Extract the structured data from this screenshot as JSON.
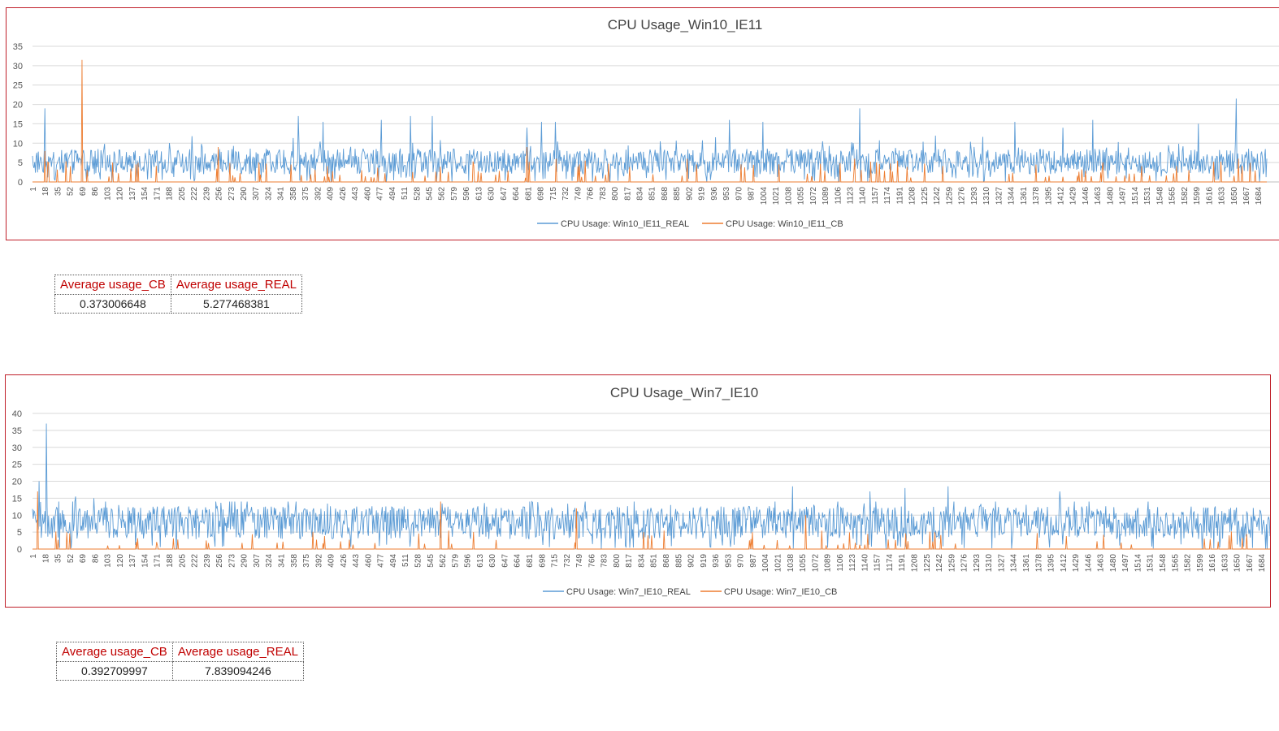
{
  "colors": {
    "real": "#5b9bd5",
    "cb": "#ed7d31",
    "border": "#c0202a",
    "header_text": "#c00000"
  },
  "chart_data": [
    {
      "type": "line",
      "title": "CPU Usage_Win10_IE11",
      "xlabel": "",
      "ylabel": "",
      "ylim": [
        0,
        35
      ],
      "yticks": [
        0,
        5,
        10,
        15,
        20,
        25,
        30,
        35
      ],
      "x_range": [
        1,
        1696
      ],
      "xticks": [
        1,
        18,
        35,
        52,
        69,
        86,
        103,
        120,
        137,
        154,
        171,
        188,
        205,
        222,
        239,
        256,
        273,
        290,
        307,
        324,
        341,
        358,
        375,
        392,
        409,
        426,
        443,
        460,
        477,
        494,
        511,
        528,
        545,
        562,
        579,
        596,
        613,
        630,
        647,
        664,
        681,
        698,
        715,
        732,
        749,
        766,
        783,
        800,
        817,
        834,
        851,
        868,
        885,
        902,
        919,
        936,
        953,
        970,
        987,
        1004,
        1021,
        1038,
        1055,
        1072,
        1089,
        1106,
        1123,
        1140,
        1157,
        1174,
        1191,
        1208,
        1225,
        1242,
        1259,
        1276,
        1293,
        1310,
        1327,
        1344,
        1361,
        1378,
        1395,
        1412,
        1429,
        1446,
        1463,
        1480,
        1497,
        1514,
        1531,
        1548,
        1565,
        1582,
        1599,
        1616,
        1633,
        1650,
        1667,
        1684
      ],
      "grid": true,
      "legend_position": "bottom",
      "series": [
        {
          "name": "CPU Usage: Win10_IE11_REAL",
          "baseline": 5.3,
          "spikes": [
            [
              18,
              19
            ],
            [
              366,
              17
            ],
            [
              400,
              15.5
            ],
            [
              480,
              16
            ],
            [
              520,
              17
            ],
            [
              550,
              17
            ],
            [
              680,
              14
            ],
            [
              700,
              15.5
            ],
            [
              719,
              15.5
            ],
            [
              958,
              16
            ],
            [
              1004,
              15.5
            ],
            [
              1137,
              19
            ],
            [
              1350,
              15.5
            ],
            [
              1416,
              14
            ],
            [
              1457,
              16
            ],
            [
              1602,
              15
            ],
            [
              1654,
              21.5
            ]
          ]
        },
        {
          "name": "CPU Usage: Win10_IE11_CB",
          "baseline": 0,
          "spikes": [
            [
              18,
              8
            ],
            [
              69,
              31.5
            ],
            [
              256,
              9
            ],
            [
              312,
              5
            ],
            [
              680,
              9
            ],
            [
              720,
              6
            ],
            [
              760,
              5.5
            ],
            [
              900,
              6
            ],
            [
              1130,
              6
            ],
            [
              1160,
              5
            ],
            [
              1657,
              6
            ]
          ]
        }
      ]
    },
    {
      "type": "line",
      "title": "CPU Usage_Win7_IE10",
      "xlabel": "",
      "ylabel": "",
      "ylim": [
        0,
        40
      ],
      "yticks": [
        0,
        5,
        10,
        15,
        20,
        25,
        30,
        35,
        40
      ],
      "x_range": [
        1,
        1696
      ],
      "xticks": [
        1,
        18,
        35,
        52,
        69,
        86,
        103,
        120,
        137,
        154,
        171,
        188,
        205,
        222,
        239,
        256,
        273,
        290,
        307,
        324,
        341,
        358,
        375,
        392,
        409,
        426,
        443,
        460,
        477,
        494,
        511,
        528,
        545,
        562,
        579,
        596,
        613,
        630,
        647,
        664,
        681,
        698,
        715,
        732,
        749,
        766,
        783,
        800,
        817,
        834,
        851,
        868,
        885,
        902,
        919,
        936,
        953,
        970,
        987,
        1004,
        1021,
        1038,
        1055,
        1072,
        1089,
        1106,
        1123,
        1140,
        1157,
        1174,
        1191,
        1208,
        1225,
        1242,
        1259,
        1276,
        1293,
        1310,
        1327,
        1344,
        1361,
        1378,
        1395,
        1412,
        1429,
        1446,
        1463,
        1480,
        1497,
        1514,
        1531,
        1548,
        1565,
        1582,
        1599,
        1616,
        1633,
        1650,
        1667,
        1684
      ],
      "grid": true,
      "legend_position": "bottom",
      "series": [
        {
          "name": "CPU Usage: Win7_IE10_REAL",
          "baseline": 7.8,
          "spikes": [
            [
              10,
              20
            ],
            [
              20,
              37
            ],
            [
              60,
              15.5
            ],
            [
              85,
              15
            ],
            [
              1042,
              18.5
            ],
            [
              1148,
              17
            ],
            [
              1196,
              18
            ],
            [
              1255,
              18.5
            ],
            [
              1408,
              17
            ]
          ]
        },
        {
          "name": "CPU Usage: Win7_IE10_CB",
          "baseline": 0,
          "spikes": [
            [
              8,
              17
            ],
            [
              560,
              14
            ],
            [
              746,
              12
            ],
            [
              1060,
              10
            ]
          ]
        }
      ]
    }
  ],
  "tables": [
    {
      "headers": [
        "Average usage_CB",
        "Average usage_REAL"
      ],
      "values": [
        "0.373006648",
        "5.277468381"
      ]
    },
    {
      "headers": [
        "Average usage_CB",
        "Average usage_REAL"
      ],
      "values": [
        "0.392709997",
        "7.839094246"
      ]
    }
  ]
}
